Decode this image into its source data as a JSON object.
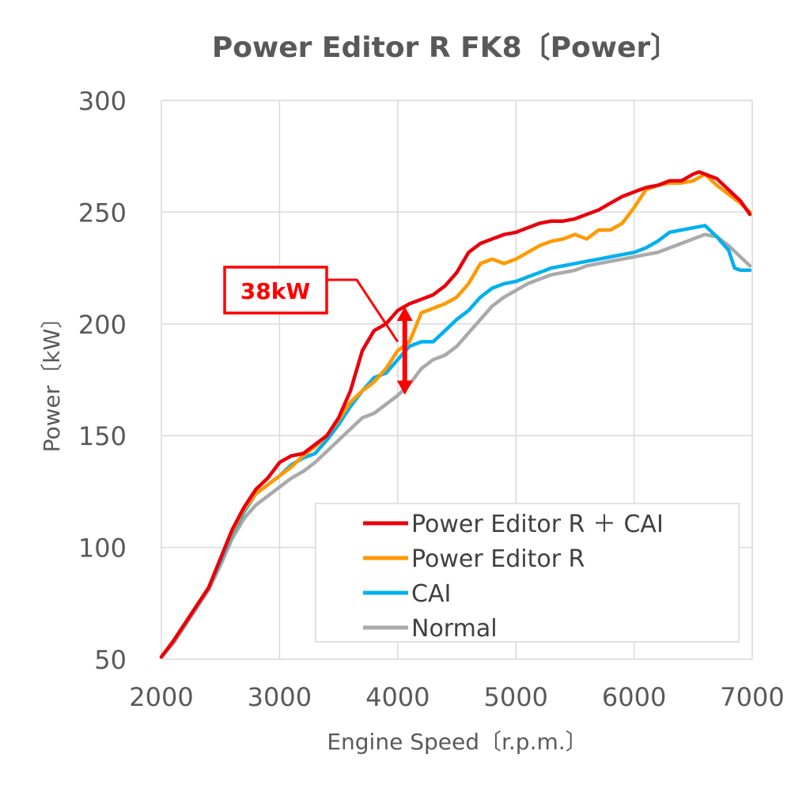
{
  "chart_data": {
    "type": "line",
    "title": "Power Editor R FK8〔Power〕",
    "xlabel": "Engine Speed〔r.p.m.〕",
    "ylabel": "Power〔kW〕",
    "xlim": [
      2000,
      7000
    ],
    "ylim": [
      50,
      300
    ],
    "xticks": [
      2000,
      3000,
      4000,
      5000,
      6000,
      7000
    ],
    "yticks": [
      50,
      100,
      150,
      200,
      250,
      300
    ],
    "grid": true,
    "legend_position": "bottom-right",
    "series": [
      {
        "name": "Power Editor R ＋ CAI",
        "color": "#e8000b",
        "x": [
          2000,
          2100,
          2200,
          2300,
          2400,
          2500,
          2600,
          2700,
          2800,
          2900,
          3000,
          3100,
          3200,
          3300,
          3400,
          3500,
          3600,
          3700,
          3800,
          3900,
          4000,
          4100,
          4200,
          4300,
          4400,
          4500,
          4600,
          4700,
          4800,
          4900,
          5000,
          5100,
          5200,
          5300,
          5400,
          5500,
          5600,
          5700,
          5800,
          5900,
          6000,
          6100,
          6200,
          6300,
          6400,
          6500,
          6550,
          6600,
          6700,
          6800,
          6900,
          6980
        ],
        "y": [
          51,
          58,
          66,
          74,
          82,
          95,
          108,
          118,
          126,
          131,
          138,
          141,
          142,
          146,
          150,
          158,
          170,
          188,
          197,
          200,
          206,
          209,
          211,
          213,
          217,
          223,
          232,
          236,
          238,
          240,
          241,
          243,
          245,
          246,
          246,
          247,
          249,
          251,
          254,
          257,
          259,
          261,
          262,
          264,
          264,
          267,
          268,
          267,
          265,
          260,
          255,
          249
        ]
      },
      {
        "name": "Power Editor R",
        "color": "#ff9900",
        "x": [
          2000,
          2100,
          2200,
          2300,
          2400,
          2500,
          2600,
          2700,
          2800,
          2900,
          3000,
          3100,
          3200,
          3300,
          3400,
          3500,
          3600,
          3700,
          3800,
          3900,
          4000,
          4100,
          4200,
          4300,
          4400,
          4500,
          4600,
          4700,
          4800,
          4900,
          5000,
          5100,
          5200,
          5300,
          5400,
          5500,
          5600,
          5700,
          5800,
          5900,
          6000,
          6100,
          6200,
          6300,
          6400,
          6500,
          6600,
          6700,
          6800,
          6900,
          6980
        ],
        "y": [
          51,
          58,
          66,
          74,
          82,
          95,
          107,
          117,
          124,
          128,
          132,
          136,
          141,
          145,
          150,
          157,
          165,
          170,
          174,
          180,
          188,
          192,
          205,
          207,
          209,
          212,
          218,
          227,
          229,
          227,
          229,
          232,
          235,
          237,
          238,
          240,
          238,
          242,
          242,
          245,
          252,
          260,
          262,
          263,
          263,
          264,
          267,
          262,
          258,
          254,
          250
        ]
      },
      {
        "name": "CAI",
        "color": "#00b0f0",
        "x": [
          2000,
          2100,
          2200,
          2300,
          2400,
          2500,
          2600,
          2700,
          2800,
          2900,
          3000,
          3100,
          3200,
          3300,
          3400,
          3500,
          3600,
          3700,
          3800,
          3900,
          4000,
          4100,
          4200,
          4300,
          4400,
          4500,
          4600,
          4700,
          4800,
          4900,
          5000,
          5100,
          5200,
          5300,
          5400,
          5500,
          5600,
          5700,
          5800,
          5900,
          6000,
          6100,
          6200,
          6300,
          6400,
          6500,
          6600,
          6700,
          6800,
          6850,
          6900,
          6980
        ],
        "y": [
          51,
          58,
          66,
          74,
          82,
          94,
          106,
          116,
          124,
          128,
          132,
          137,
          140,
          142,
          148,
          155,
          163,
          170,
          176,
          178,
          184,
          190,
          192,
          192,
          197,
          202,
          206,
          212,
          216,
          218,
          219,
          221,
          223,
          225,
          226,
          227,
          228,
          229,
          230,
          231,
          232,
          234,
          237,
          241,
          242,
          243,
          244,
          239,
          233,
          225,
          224,
          224
        ]
      },
      {
        "name": "Normal",
        "color": "#aaaaaa",
        "x": [
          2000,
          2100,
          2200,
          2300,
          2400,
          2500,
          2600,
          2700,
          2800,
          2900,
          3000,
          3100,
          3200,
          3300,
          3400,
          3500,
          3600,
          3700,
          3800,
          3900,
          4000,
          4100,
          4200,
          4300,
          4400,
          4500,
          4600,
          4700,
          4800,
          4900,
          5000,
          5100,
          5200,
          5300,
          5400,
          5500,
          5600,
          5700,
          5800,
          5900,
          6000,
          6100,
          6200,
          6300,
          6400,
          6500,
          6600,
          6700,
          6800,
          6900,
          6980
        ],
        "y": [
          51,
          57,
          65,
          73,
          81,
          92,
          104,
          113,
          119,
          123,
          127,
          131,
          134,
          138,
          143,
          148,
          153,
          158,
          160,
          164,
          168,
          173,
          180,
          184,
          186,
          190,
          196,
          202,
          208,
          212,
          215,
          218,
          220,
          222,
          223,
          224,
          226,
          227,
          228,
          229,
          230,
          231,
          232,
          234,
          236,
          238,
          240,
          239,
          235,
          230,
          226
        ]
      }
    ],
    "annotations": [
      {
        "text": "38kW",
        "color": "#ff0000",
        "arrow_x": 4060,
        "arrow_y_from": 169,
        "arrow_y_to": 207,
        "leader_to_x": 4000,
        "leader_to_y": 192
      }
    ]
  }
}
